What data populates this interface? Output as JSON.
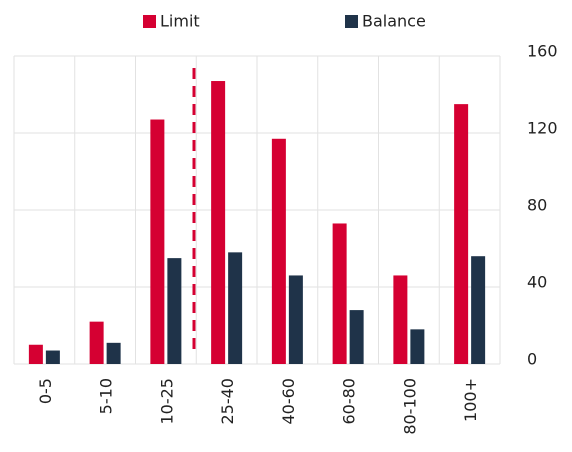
{
  "chart_data": {
    "type": "bar",
    "categories": [
      "0-5",
      "5-10",
      "10-25",
      "25-40",
      "40-60",
      "60-80",
      "80-100",
      "100+"
    ],
    "series": [
      {
        "name": "Limit",
        "color": "#d50032",
        "values": [
          10,
          22,
          127,
          147,
          117,
          73,
          46,
          135
        ]
      },
      {
        "name": "Balance",
        "color": "#1f3349",
        "values": [
          7,
          11,
          55,
          58,
          46,
          28,
          18,
          56
        ]
      }
    ],
    "ylim": [
      0,
      160
    ],
    "yticks": [
      0,
      40,
      80,
      120,
      160
    ],
    "grid": true,
    "legend": "top"
  }
}
